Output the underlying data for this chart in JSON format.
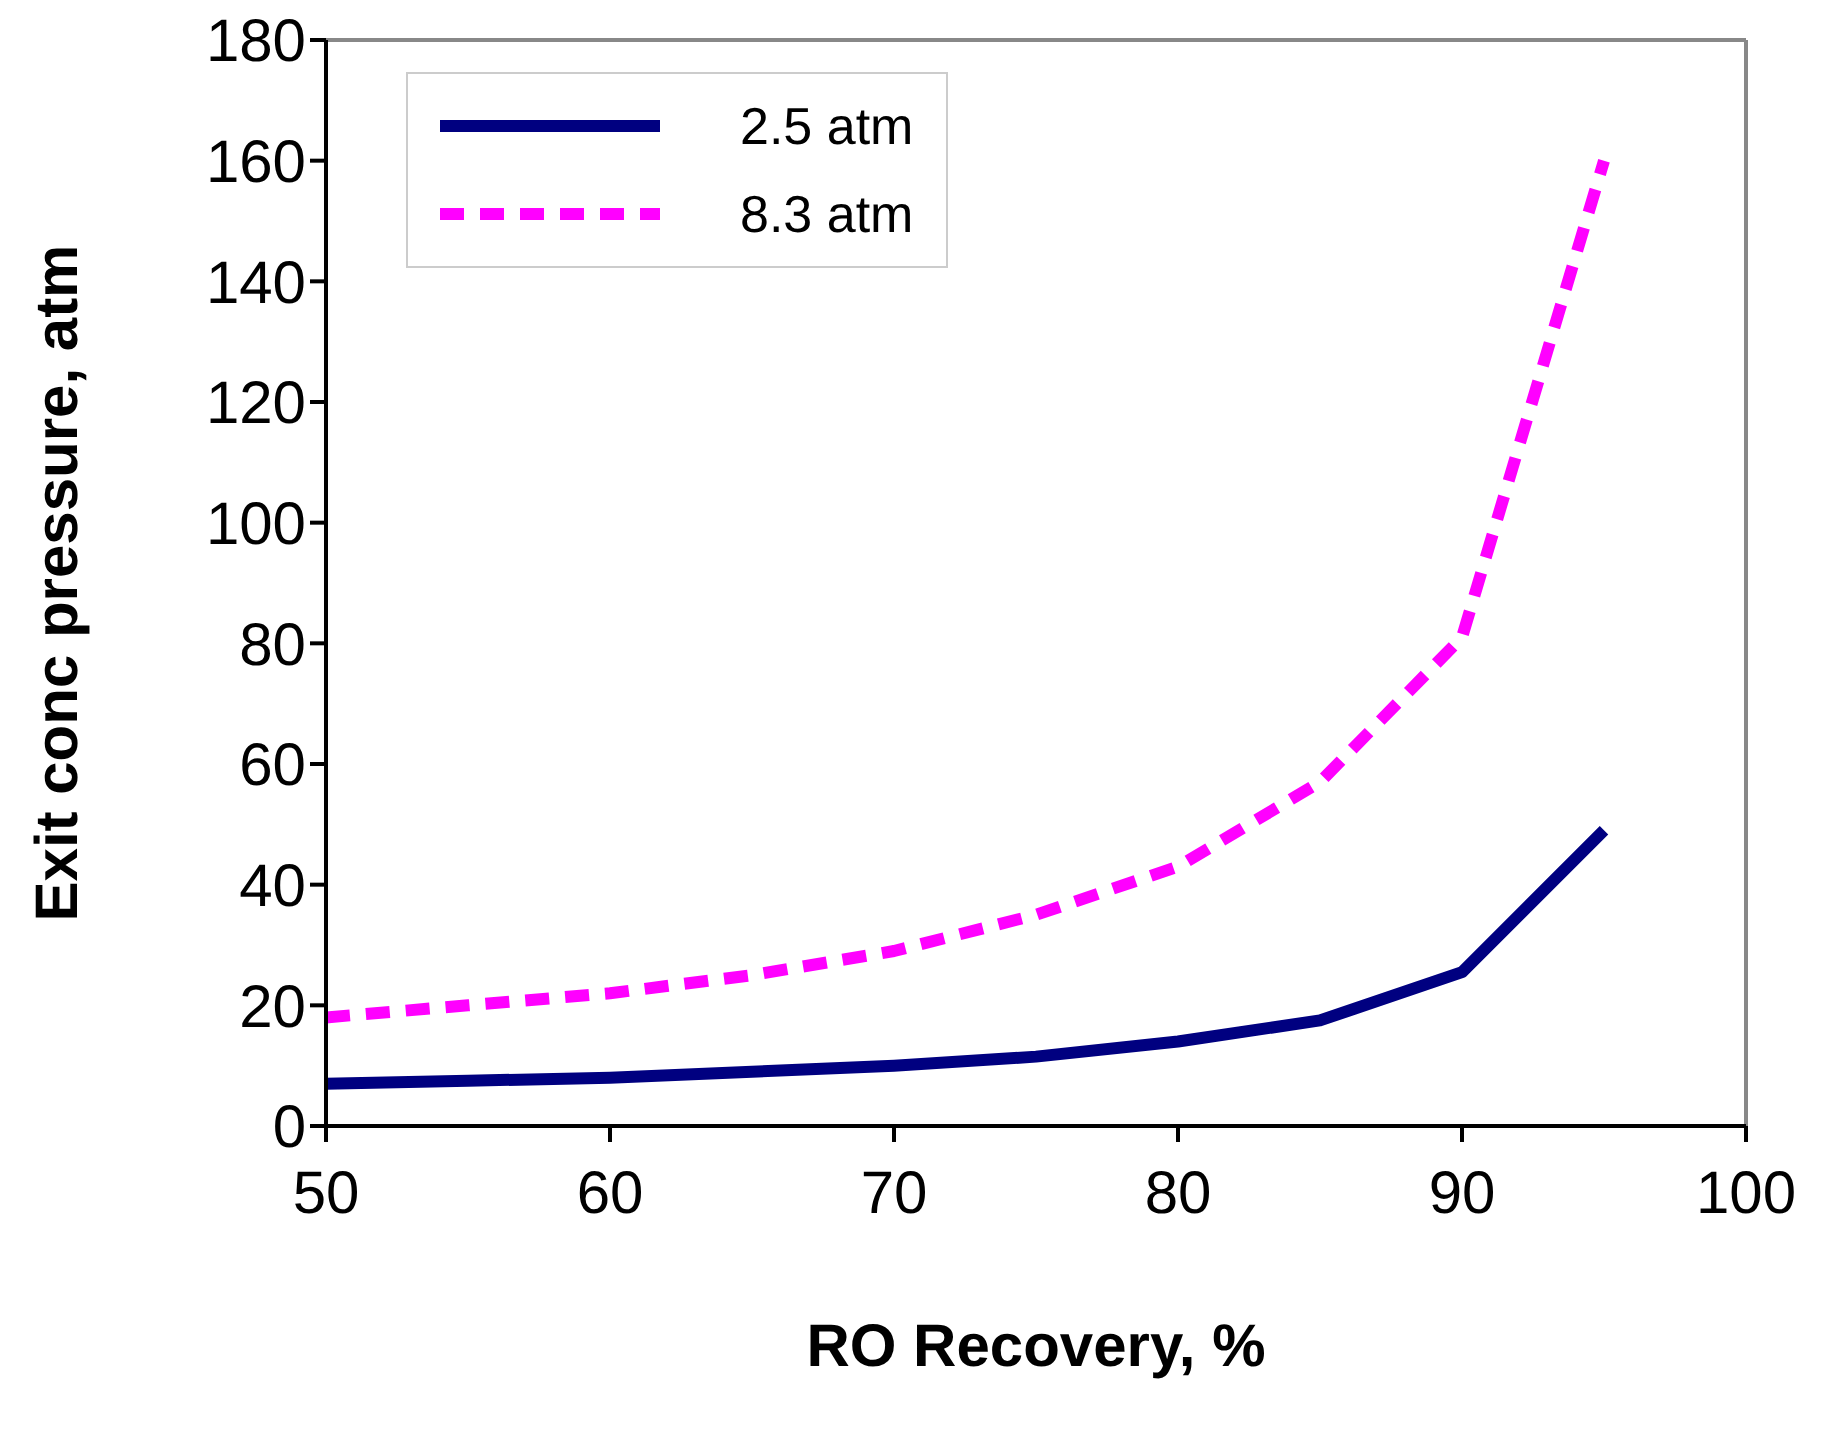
{
  "chart_data": {
    "type": "line",
    "xlabel": "RO Recovery, %",
    "ylabel": "Exit conc pressure, atm",
    "x": [
      50,
      55,
      60,
      65,
      70,
      75,
      80,
      85,
      90,
      95
    ],
    "series": [
      {
        "name": "2.5 atm",
        "color": "#000080",
        "line_style": "solid",
        "values": [
          7,
          7.5,
          8,
          9,
          10,
          11.5,
          14,
          17.5,
          25.5,
          49
        ]
      },
      {
        "name": "8.3 atm",
        "color": "#ff00ff",
        "line_style": "dashed",
        "values": [
          18,
          20,
          22,
          25,
          29,
          35,
          43,
          57,
          81,
          160
        ]
      }
    ],
    "xlim": [
      50,
      100
    ],
    "xticks": [
      50,
      60,
      70,
      80,
      90,
      100
    ],
    "ylim": [
      0,
      180
    ],
    "yticks": [
      0,
      20,
      40,
      60,
      80,
      100,
      120,
      140,
      160,
      180
    ],
    "grid": false,
    "legend": "top left",
    "marker": "none"
  }
}
